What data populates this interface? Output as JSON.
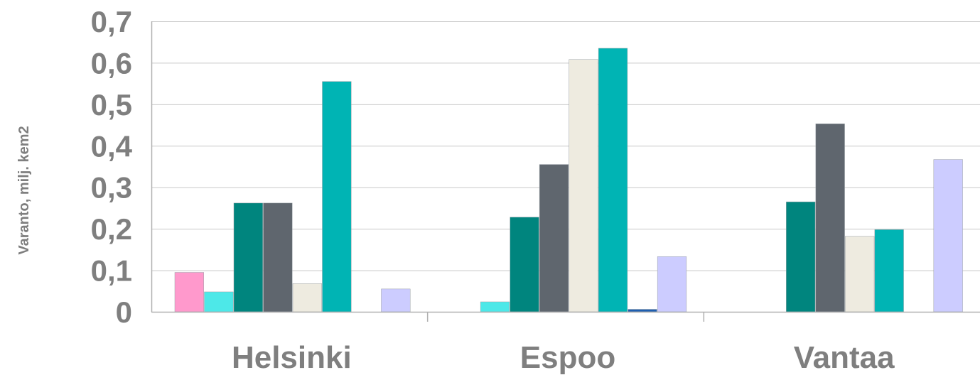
{
  "chart_data": {
    "type": "bar",
    "ylabel": "Varanto, milj. kem2",
    "xlabel": "",
    "ylim": [
      0,
      0.7
    ],
    "yticks": [
      "0",
      "0,1",
      "0,2",
      "0,3",
      "0,4",
      "0,5",
      "0,6",
      "0,7"
    ],
    "grid": true,
    "legend": "none",
    "categories": [
      "Helsinki",
      "Espoo",
      "Vantaa"
    ],
    "series": [
      {
        "color": "#ff99cc",
        "values": [
          0.095,
          0,
          0
        ]
      },
      {
        "color": "#4de8e8",
        "values": [
          0.048,
          0.024,
          0
        ]
      },
      {
        "color": "#00857e",
        "values": [
          0.262,
          0.228,
          0.265
        ]
      },
      {
        "color": "#5f666e",
        "values": [
          0.262,
          0.355,
          0.453
        ]
      },
      {
        "color": "#eeebe0",
        "values": [
          0.068,
          0.608,
          0.182
        ]
      },
      {
        "color": "#00b4b4",
        "values": [
          0.555,
          0.635,
          0.198
        ]
      },
      {
        "color": "#1f5fb0",
        "values": [
          0,
          0.006,
          0
        ]
      },
      {
        "color": "#ccccff",
        "values": [
          0.055,
          0.133,
          0.367
        ]
      }
    ]
  }
}
